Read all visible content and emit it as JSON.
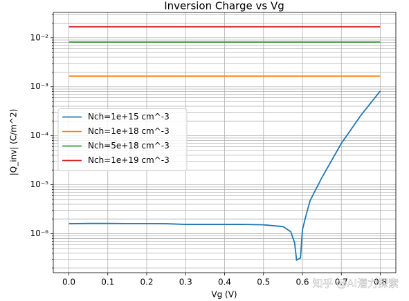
{
  "chart_data": {
    "type": "line",
    "title": "Inversion Charge vs Vg",
    "xlabel": "Vg (V)",
    "ylabel": "|Q_inv| (C/m^2)",
    "x": [
      0,
      0.05,
      0.1,
      0.15,
      0.2,
      0.25,
      0.3,
      0.35,
      0.4,
      0.45,
      0.5,
      0.55,
      0.57,
      0.58,
      0.585,
      0.595,
      0.6,
      0.61,
      0.62,
      0.65,
      0.7,
      0.75,
      0.8
    ],
    "series": [
      {
        "name": "Nch=1e+15 cm^-3",
        "color": "#1f77b4",
        "values": [
          1.6e-06,
          1.62e-06,
          1.62e-06,
          1.61e-06,
          1.61e-06,
          1.6e-06,
          1.55e-06,
          1.55e-06,
          1.55e-06,
          1.55e-06,
          1.52e-06,
          1.4e-06,
          1.1e-06,
          6.5e-07,
          2.9e-07,
          3.2e-07,
          1.2e-06,
          2.5e-06,
          4.8e-06,
          1.4e-05,
          7e-05,
          0.00026,
          0.00082
        ]
      },
      {
        "name": "Nch=1e+18 cm^-3",
        "color": "#ff7f0e",
        "values": [
          0.00165,
          0.00165,
          0.00165,
          0.00165,
          0.00165,
          0.00165,
          0.00165,
          0.00165,
          0.00165,
          0.00165,
          0.00165,
          0.00165,
          0.00165,
          0.00165,
          0.00165,
          0.00165,
          0.00165,
          0.00165,
          0.00165,
          0.00165,
          0.00165,
          0.00165,
          0.00165
        ]
      },
      {
        "name": "Nch=5e+18 cm^-3",
        "color": "#2ca02c",
        "values": [
          0.0082,
          0.0082,
          0.0082,
          0.0082,
          0.0082,
          0.0082,
          0.0082,
          0.0082,
          0.0082,
          0.0082,
          0.0082,
          0.0082,
          0.0082,
          0.0082,
          0.0082,
          0.0082,
          0.0082,
          0.0082,
          0.0082,
          0.0082,
          0.0082,
          0.0082,
          0.0082
        ]
      },
      {
        "name": "Nch=1e+19 cm^-3",
        "color": "#d62728",
        "values": [
          0.0168,
          0.0168,
          0.0168,
          0.0168,
          0.0168,
          0.0168,
          0.0168,
          0.0168,
          0.0168,
          0.0168,
          0.0168,
          0.0168,
          0.0168,
          0.0168,
          0.0168,
          0.0168,
          0.0168,
          0.0168,
          0.0168,
          0.0168,
          0.0168,
          0.0168,
          0.0168
        ]
      }
    ],
    "xlim": [
      -0.04,
      0.84
    ],
    "xticks": [
      {
        "value": 0,
        "label": "0.0"
      },
      0.1,
      0.2,
      0.3,
      0.4,
      0.5,
      0.6,
      0.7,
      0.8
    ],
    "ylim": [
      1.6e-07,
      0.033
    ],
    "yscale": "log",
    "yticks": [
      {
        "value": 1e-06,
        "label": "10⁻⁶"
      },
      {
        "value": 1e-05,
        "label": "10⁻⁵"
      },
      {
        "value": 0.0001,
        "label": "10⁻⁴"
      },
      {
        "value": 0.001,
        "label": "10⁻³"
      },
      {
        "value": 0.01,
        "label": "10⁻²"
      }
    ],
    "yminorticks": [
      2e-07,
      3e-07,
      4e-07,
      5e-07,
      6e-07,
      7e-07,
      8e-07,
      9e-07,
      2e-06,
      3e-06,
      4e-06,
      5e-06,
      6e-06,
      7e-06,
      8e-06,
      9e-06,
      2e-05,
      3e-05,
      4e-05,
      5e-05,
      6e-05,
      7e-05,
      8e-05,
      9e-05,
      0.0002,
      0.0003,
      0.0004,
      0.0005,
      0.0006,
      0.0007,
      0.0008,
      0.0009,
      0.002,
      0.003,
      0.004,
      0.005,
      0.006,
      0.007,
      0.008,
      0.009,
      0.02,
      0.03
    ],
    "grid": true,
    "legend": "center left",
    "watermark": "知乎 @AI潜力探索"
  }
}
